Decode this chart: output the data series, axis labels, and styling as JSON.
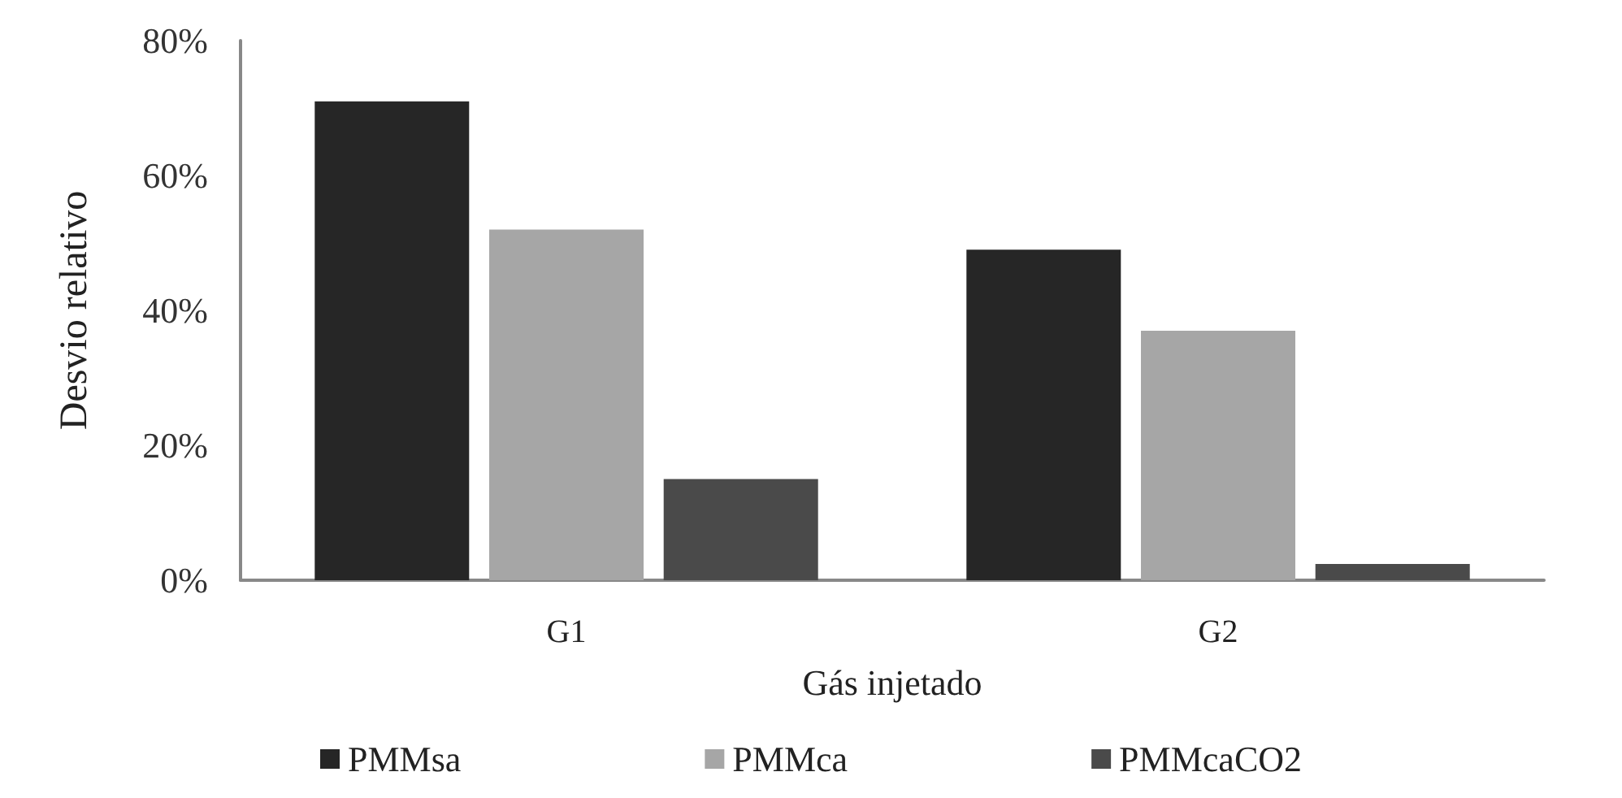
{
  "chart_data": {
    "type": "bar",
    "xlabel": "Gás injetado",
    "ylabel": "Desvio relativo",
    "categories": [
      "G1",
      "G2"
    ],
    "series": [
      {
        "name": "PMMsa",
        "color": "#262626",
        "values": [
          71,
          49
        ]
      },
      {
        "name": "PMMca",
        "color": "#a6a6a6",
        "values": [
          52,
          37
        ]
      },
      {
        "name": "PMMcaCO2",
        "color": "#4a4a4a",
        "values": [
          15,
          2.4
        ]
      }
    ],
    "ylim": [
      0,
      80
    ],
    "yticks": [
      {
        "value": 0,
        "label": "0%"
      },
      {
        "value": 20,
        "label": "20%"
      },
      {
        "value": 40,
        "label": "40%"
      },
      {
        "value": 60,
        "label": "60%"
      },
      {
        "value": 80,
        "label": "80%"
      }
    ],
    "grid": false,
    "legend": "bottom"
  }
}
